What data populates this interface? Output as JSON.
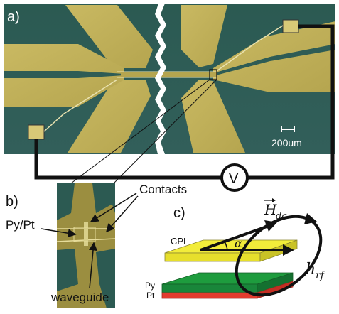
{
  "panel_a": {
    "label": "a)",
    "scale_bar_text": "200um",
    "voltmeter_symbol": "V"
  },
  "panel_b": {
    "label": "b)",
    "contacts_label": "Contacts",
    "py_pt_label": "Py/Pt",
    "waveguide_label": "waveguide"
  },
  "panel_c": {
    "label": "c)",
    "cpl_label": "CPL",
    "alpha_symbol": "α",
    "h_dc_base": "H",
    "h_dc_sub": "dc",
    "h_rf_base": "h",
    "h_rf_sub": "rf",
    "py_label": "Py",
    "pt_label": "Pt"
  },
  "colors": {
    "substrate": "#2f5f57",
    "gold": "#c3b35a",
    "gold_dark": "#9d8f3e",
    "cpl_yellow": "#f2ec3a",
    "py_green": "#1e9c3e",
    "pt_red": "#e33b2e"
  }
}
